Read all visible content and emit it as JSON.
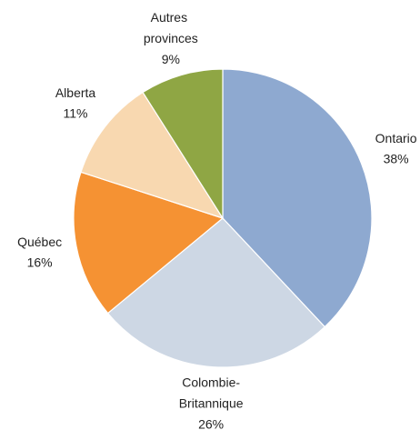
{
  "chart_data": {
    "type": "pie",
    "categories": [
      "Ontario",
      "Colombie-Britannique",
      "Québec",
      "Alberta",
      "Autres provinces"
    ],
    "values": [
      38,
      26,
      16,
      11,
      9
    ],
    "value_labels": [
      "38%",
      "26%",
      "16%",
      "11%",
      "9%"
    ],
    "colors": [
      "#8ea9d0",
      "#cdd7e4",
      "#f59233",
      "#f8d8b0",
      "#8fa644"
    ]
  }
}
